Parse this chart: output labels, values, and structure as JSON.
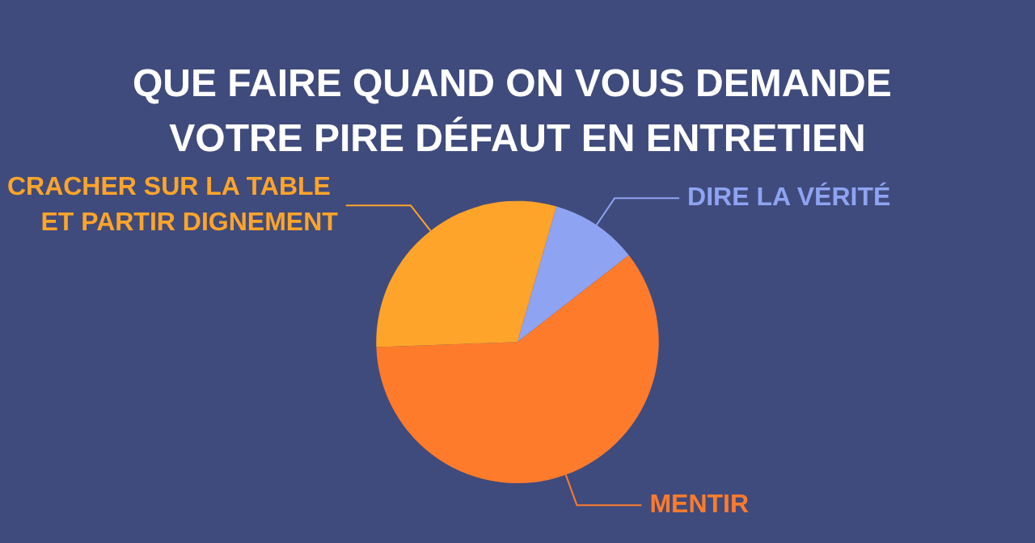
{
  "chart_data": {
    "type": "pie",
    "title": "QUE FAIRE QUAND ON VOUS DEMANDE VOTRE PIRE DÉFAUT EN ENTRETIEN",
    "categories": [
      "DIRE LA VÉRITÉ",
      "MENTIR",
      "CRACHER SUR LA TABLE ET PARTIR DIGNEMENT"
    ],
    "values": [
      10,
      60,
      30
    ],
    "colors": [
      "#8ea4f2",
      "#ff7b2c",
      "#ffa42a"
    ],
    "legend": false
  }
}
